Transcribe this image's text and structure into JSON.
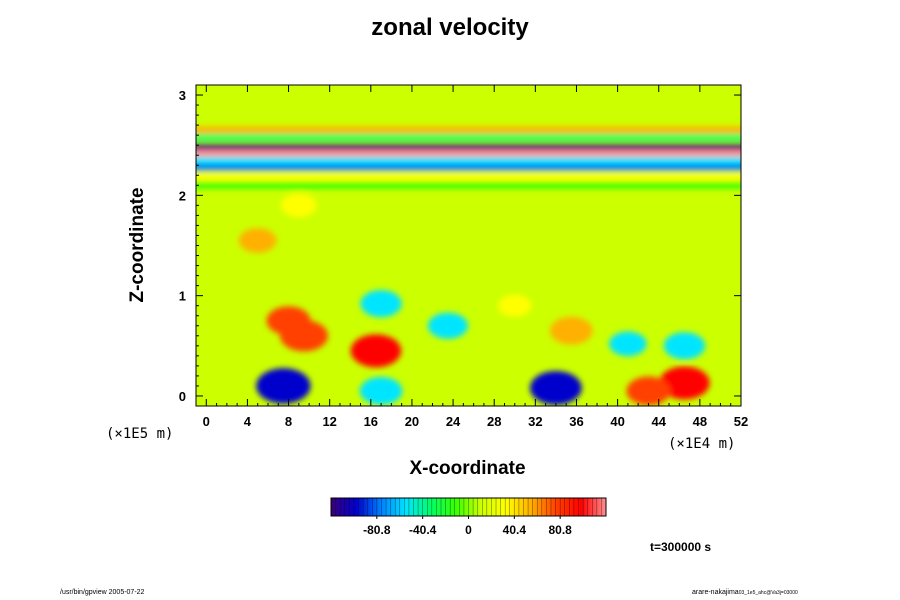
{
  "chart_data": {
    "type": "heatmap",
    "title": "zonal velocity",
    "xlabel": "X-coordinate",
    "ylabel": "Z-coordinate",
    "x_unit_label": "(×1E4 m)",
    "z_unit_label": "(×1E5 m)",
    "xlim": [
      -1,
      52
    ],
    "ylim": [
      -0.1,
      3.1
    ],
    "x_ticks": [
      0,
      4,
      8,
      12,
      16,
      20,
      24,
      28,
      32,
      36,
      40,
      44,
      48,
      52
    ],
    "y_ticks": [
      0,
      1,
      2,
      3
    ],
    "colorbar": {
      "range": [
        -121.2,
        121.2
      ],
      "tick_values": [
        -80.8,
        -40.4,
        0,
        40.4,
        80.8
      ],
      "tick_labels": [
        "-80.8",
        "-40.4",
        "0",
        "40.4",
        "80.8"
      ],
      "colormap": [
        "#3a007a",
        "#0000cd",
        "#0080ff",
        "#00e5ff",
        "#00ff66",
        "#39ff00",
        "#ccff00",
        "#ffff00",
        "#ffb000",
        "#ff4000",
        "#ff0000",
        "#ff9090"
      ]
    },
    "background_value": 0,
    "bands": [
      {
        "z": 2.65,
        "value": 45
      },
      {
        "z": 2.58,
        "value": -25
      },
      {
        "z": 2.48,
        "value": -120
      },
      {
        "z": 2.42,
        "value": 121
      },
      {
        "z": 2.35,
        "value": -55
      },
      {
        "z": 2.28,
        "value": -85
      },
      {
        "z": 2.18,
        "value": 30
      },
      {
        "z": 2.1,
        "value": -20
      }
    ],
    "features": [
      {
        "x": 7.5,
        "z": 0.1,
        "value": -110
      },
      {
        "x": 17,
        "z": 0.05,
        "value": -65
      },
      {
        "x": 34,
        "z": 0.08,
        "value": -100
      },
      {
        "x": 46.5,
        "z": 0.13,
        "value": 95
      },
      {
        "x": 43,
        "z": 0.05,
        "value": 70
      },
      {
        "x": 16.5,
        "z": 0.45,
        "value": 95
      },
      {
        "x": 8,
        "z": 0.75,
        "value": 70
      },
      {
        "x": 9.5,
        "z": 0.6,
        "value": 85
      },
      {
        "x": 35.5,
        "z": 0.65,
        "value": 65
      },
      {
        "x": 17,
        "z": 0.92,
        "value": -60
      },
      {
        "x": 23.5,
        "z": 0.7,
        "value": -55
      },
      {
        "x": 46.5,
        "z": 0.5,
        "value": -60
      },
      {
        "x": 41,
        "z": 0.52,
        "value": -45
      },
      {
        "x": 9,
        "z": 1.9,
        "value": 40
      },
      {
        "x": 5,
        "z": 1.55,
        "value": 45
      },
      {
        "x": 30,
        "z": 0.9,
        "value": 30
      }
    ]
  },
  "annotations": {
    "time": "t=300000 s",
    "footer_left": "/usr/bin/gpview 2005-07-22",
    "footer_right": "arare-nakajima",
    "footer_right_sub": "03_1e5_ahc@Va3j=03000"
  }
}
